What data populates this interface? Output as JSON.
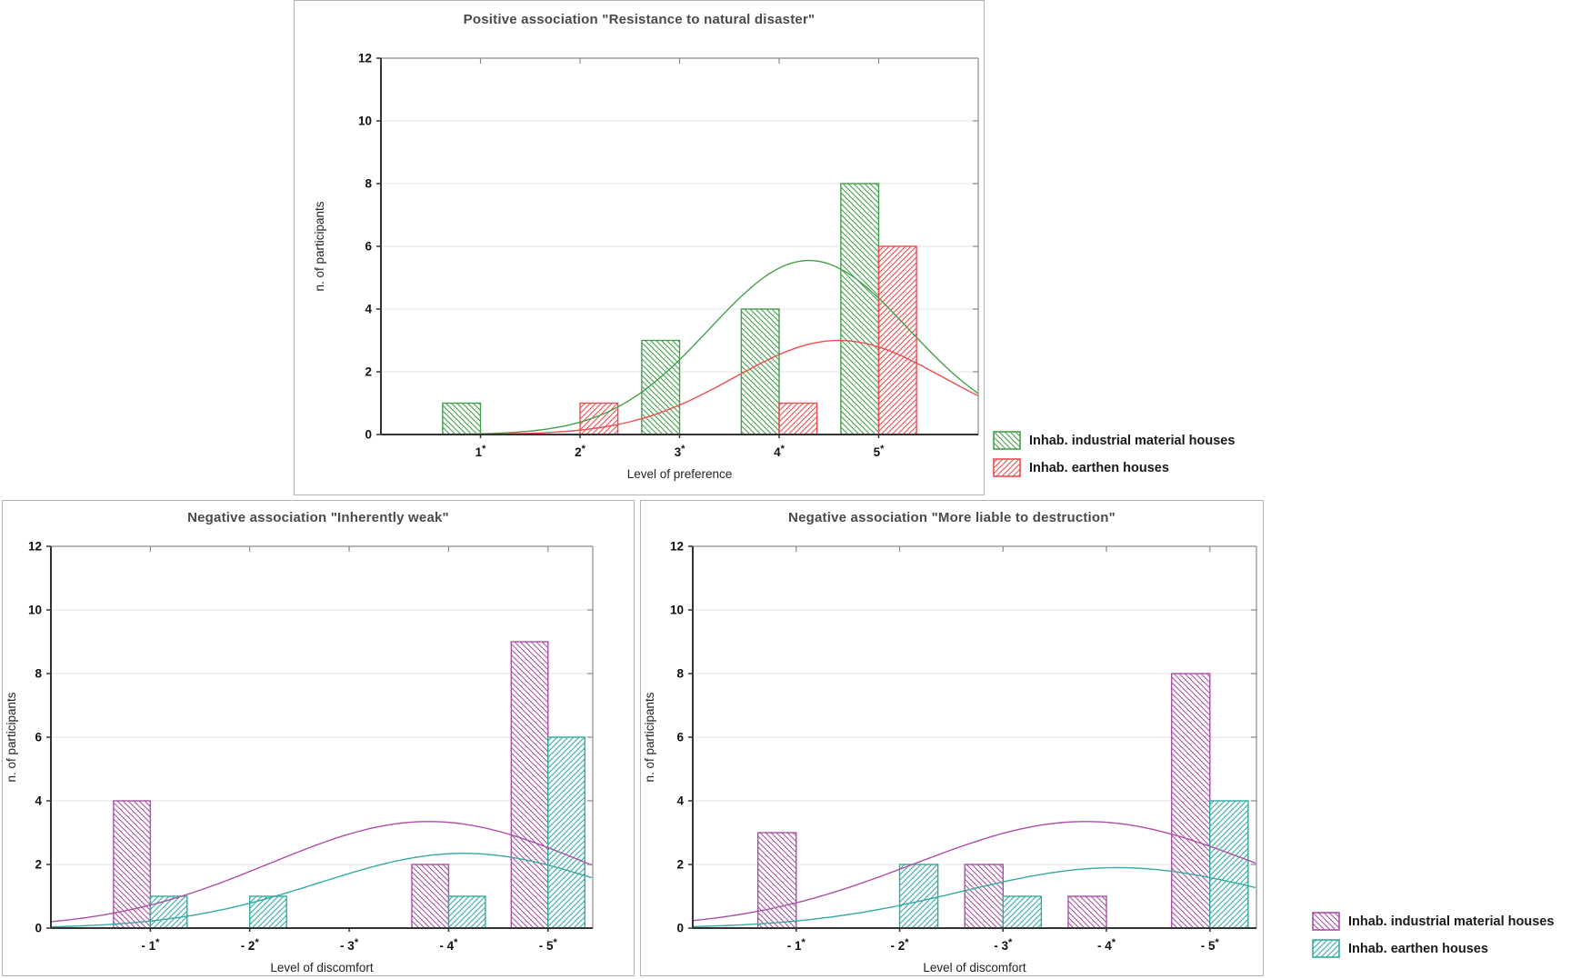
{
  "colors": {
    "green": "#44a04c",
    "red": "#ee4d50",
    "purple": "#ab4fa8",
    "teal": "#33aaa2",
    "title_text": "#4a4a4a",
    "axis_dark": "#333333",
    "frame_gray": "#8a8a8a",
    "grid": "#ebebeb",
    "tick_text": "#111111"
  },
  "chart_data": [
    {
      "type": "bar",
      "title": "Positive association \"Resistance to natural disaster\"",
      "xlabel": "Level of preference",
      "ylabel": "n. of participants",
      "ylim": [
        0,
        12
      ],
      "yticks": [
        0,
        2,
        4,
        6,
        8,
        10,
        12
      ],
      "xlim": [
        0,
        6
      ],
      "grid": "horizontal",
      "categories": [
        "1*",
        "2*",
        "3*",
        "4*",
        "5*"
      ],
      "category_positions": [
        1,
        2,
        3,
        4,
        5
      ],
      "series": [
        {
          "name": "Inhab. industrial material houses",
          "color": "#44a04c",
          "hatch": "\\",
          "side": "left",
          "values": [
            1,
            0,
            3,
            4,
            8
          ],
          "fit_curve": {
            "type": "normal",
            "mean": 4.3,
            "sd": 1.0,
            "peak": 5.55
          }
        },
        {
          "name": "Inhab. earthen houses",
          "color": "#ee4d50",
          "hatch": "/",
          "side": "right",
          "values": [
            0,
            1,
            0,
            1,
            6
          ],
          "fit_curve": {
            "type": "normal",
            "mean": 4.6,
            "sd": 1.05,
            "peak": 3.0
          }
        }
      ]
    },
    {
      "type": "bar",
      "title": "Negative association \"Inherently weak\"",
      "xlabel": "Level of discomfort",
      "ylabel": "n. of participants",
      "ylim": [
        0,
        12
      ],
      "yticks": [
        0,
        2,
        4,
        6,
        8,
        10,
        12
      ],
      "xlim": [
        0,
        5.45
      ],
      "grid": "horizontal",
      "categories": [
        "- 1*",
        "- 2*",
        "- 3*",
        "- 4*",
        "- 5*"
      ],
      "category_positions": [
        1,
        2,
        3,
        4,
        5
      ],
      "series": [
        {
          "name": "Inhab. industrial material houses",
          "color": "#ab4fa8",
          "hatch": "\\",
          "side": "left",
          "values": [
            4,
            0,
            0,
            2,
            9
          ],
          "fit_curve": {
            "type": "normal",
            "mean": 3.8,
            "sd": 1.6,
            "peak": 3.35
          }
        },
        {
          "name": "Inhab. earthen houses",
          "color": "#33aaa2",
          "hatch": "/",
          "side": "right",
          "values": [
            1,
            1,
            0,
            1,
            6
          ],
          "fit_curve": {
            "type": "normal",
            "mean": 4.15,
            "sd": 1.45,
            "peak": 2.35
          }
        }
      ]
    },
    {
      "type": "bar",
      "title": "Negative association \"More liable to destruction\"",
      "xlabel": "Level of discomfort",
      "ylabel": "n. of participants",
      "ylim": [
        0,
        12
      ],
      "yticks": [
        0,
        2,
        4,
        6,
        8,
        10,
        12
      ],
      "xlim": [
        0,
        5.45
      ],
      "grid": "horizontal",
      "categories": [
        "- 1*",
        "- 2*",
        "- 3*",
        "- 4*",
        "- 5*"
      ],
      "category_positions": [
        1,
        2,
        3,
        4,
        5
      ],
      "series": [
        {
          "name": "Inhab. industrial material houses",
          "color": "#ab4fa8",
          "hatch": "\\",
          "side": "left",
          "values": [
            3,
            0,
            2,
            1,
            8
          ],
          "fit_curve": {
            "type": "normal",
            "mean": 3.8,
            "sd": 1.65,
            "peak": 3.35
          }
        },
        {
          "name": "Inhab. earthen houses",
          "color": "#33aaa2",
          "hatch": "/",
          "side": "right",
          "values": [
            0,
            2,
            1,
            0,
            4
          ],
          "fit_curve": {
            "type": "normal",
            "mean": 4.1,
            "sd": 1.5,
            "peak": 1.9
          }
        }
      ]
    }
  ],
  "legends": {
    "top": {
      "entries": [
        {
          "label": "Inhab. industrial material houses",
          "color": "#44a04c",
          "hatch": "\\"
        },
        {
          "label": "Inhab. earthen houses",
          "color": "#ee4d50",
          "hatch": "/"
        }
      ]
    },
    "bottom": {
      "entries": [
        {
          "label": "Inhab. industrial material houses",
          "color": "#ab4fa8",
          "hatch": "\\"
        },
        {
          "label": "Inhab. earthen houses",
          "color": "#33aaa2",
          "hatch": "/"
        }
      ]
    }
  }
}
